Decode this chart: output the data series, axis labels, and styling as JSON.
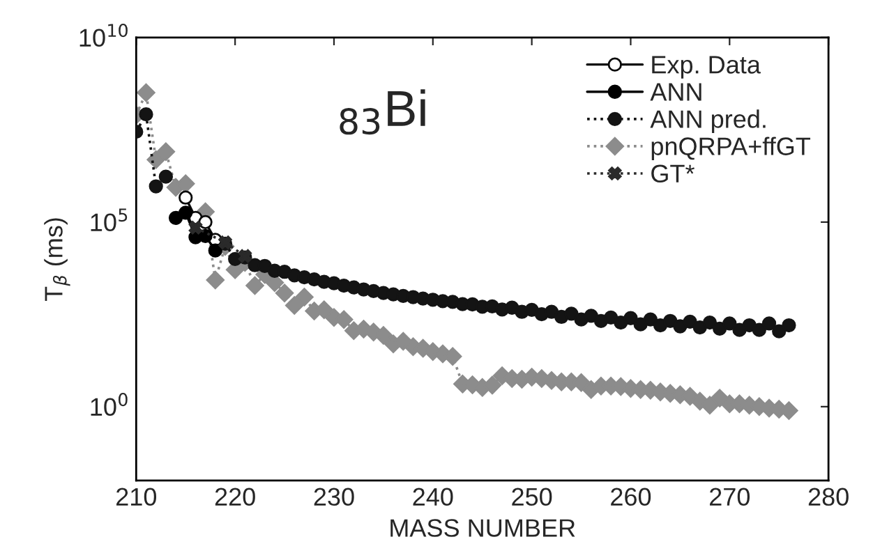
{
  "chart_data": {
    "type": "line",
    "xlabel": "MASS NUMBER",
    "ylabel": "T$_{β}$ (ms)",
    "annotations": [
      "$_{83}$Bi"
    ],
    "log": "y",
    "xlim": [
      210,
      280
    ],
    "xticks": [
      210,
      220,
      230,
      240,
      250,
      260,
      270,
      280
    ],
    "ylim": [
      0.01,
      10000000000.0
    ],
    "yticks": [
      {
        "value": 1,
        "label": "10$^{0}$"
      },
      {
        "value": 100000,
        "label": "10$^{5}$"
      },
      {
        "value": 10000000000.0,
        "label": "10$^{10}$"
      }
    ],
    "grid": false,
    "legend": "top right",
    "series": [
      {
        "name": "Exp. Data",
        "color": "#0a0a0a",
        "marker": "circle",
        "line_style": "solid",
        "x": [
          215,
          216,
          217,
          218
        ],
        "values": [
          460000.0,
          130000.0,
          100000.0,
          33000.0
        ]
      },
      {
        "name": "ANN",
        "color": "#000000",
        "marker": "circle",
        "line_style": "solid",
        "x": [
          214,
          215,
          216,
          217,
          218
        ],
        "values": [
          130000.0,
          180000.0,
          39000.0,
          42000.0,
          17000.0
        ]
      },
      {
        "name": "ANN pred.",
        "color": "#141414",
        "marker": "circle",
        "line_style": "dotted",
        "x": [
          210,
          211,
          212,
          213,
          214,
          215,
          216,
          217,
          218,
          219,
          220,
          221,
          222,
          223,
          224,
          225,
          226,
          227,
          228,
          229,
          230,
          231,
          232,
          233,
          234,
          235,
          236,
          237,
          238,
          239,
          240,
          241,
          242,
          243,
          244,
          245,
          246,
          247,
          248,
          249,
          250,
          251,
          252,
          253,
          254,
          255,
          256,
          257,
          258,
          259,
          260,
          261,
          262,
          263,
          264,
          265,
          266,
          267,
          268,
          269,
          270,
          271,
          272,
          273,
          274,
          275,
          276
        ],
        "values": [
          28000000.0,
          83000000.0,
          930000.0,
          1700000.0,
          null,
          null,
          null,
          null,
          null,
          26000.0,
          10000.0,
          11000.0,
          6800.0,
          6500.0,
          4800.0,
          4500.0,
          3600.0,
          3200.0,
          2800.0,
          2400.0,
          2200.0,
          1900.0,
          1700.0,
          1500.0,
          1350.0,
          1200.0,
          1100.0,
          1000.0,
          930,
          850,
          790,
          720,
          690,
          600,
          590,
          510,
          520,
          430,
          480,
          370,
          420,
          320,
          370,
          270,
          330,
          230,
          290,
          210,
          260,
          190,
          250,
          170,
          230,
          160,
          210,
          150,
          200,
          140,
          190,
          130,
          180,
          120,
          160,
          120,
          180,
          110,
          160
        ]
      },
      {
        "name": "pnQRPA+ffGT",
        "color": "#8c8c8c",
        "marker": "diamond",
        "line_style": "dotted",
        "x": [
          210,
          211,
          212,
          213,
          214,
          215,
          216,
          217,
          218,
          219,
          220,
          221,
          222,
          223,
          224,
          225,
          226,
          227,
          228,
          229,
          230,
          231,
          232,
          233,
          234,
          235,
          236,
          237,
          238,
          239,
          240,
          241,
          242,
          243,
          244,
          245,
          246,
          247,
          248,
          249,
          250,
          251,
          252,
          253,
          254,
          255,
          256,
          257,
          258,
          259,
          260,
          261,
          262,
          263,
          264,
          265,
          266,
          267,
          268,
          269,
          270,
          271,
          272,
          273,
          274,
          275,
          276
        ],
        "values": [
          79000000.0,
          320000000.0,
          4900000.0,
          8100000.0,
          870000.0,
          1100000.0,
          null,
          190000.0,
          2700.0,
          22000.0,
          5100.0,
          8100.0,
          1900.0,
          3800.0,
          2300.0,
          1200.0,
          550,
          930,
          390,
          420,
          260,
          230,
          115,
          126,
          105,
          85,
          50,
          59,
          42,
          38,
          31,
          27,
          23,
          4.1,
          3.9,
          3.3,
          3.8,
          6.9,
          5.8,
          5.5,
          6.3,
          5.8,
          5.1,
          4.7,
          4.7,
          4.5,
          2.9,
          3.6,
          3.6,
          3.5,
          3.1,
          2.9,
          2.8,
          2.5,
          2.3,
          2.1,
          1.9,
          1.4,
          1.1,
          1.7,
          1.2,
          1.2,
          1.1,
          1.0,
          0.91,
          0.85,
          0.78
        ]
      },
      {
        "name": "GT*",
        "color": "#2a2a2a",
        "marker": "cross",
        "line_style": "dotted",
        "x": [
          216,
          219,
          221
        ],
        "values": [
          71000.0,
          28000.0,
          12000.0
        ]
      }
    ]
  }
}
